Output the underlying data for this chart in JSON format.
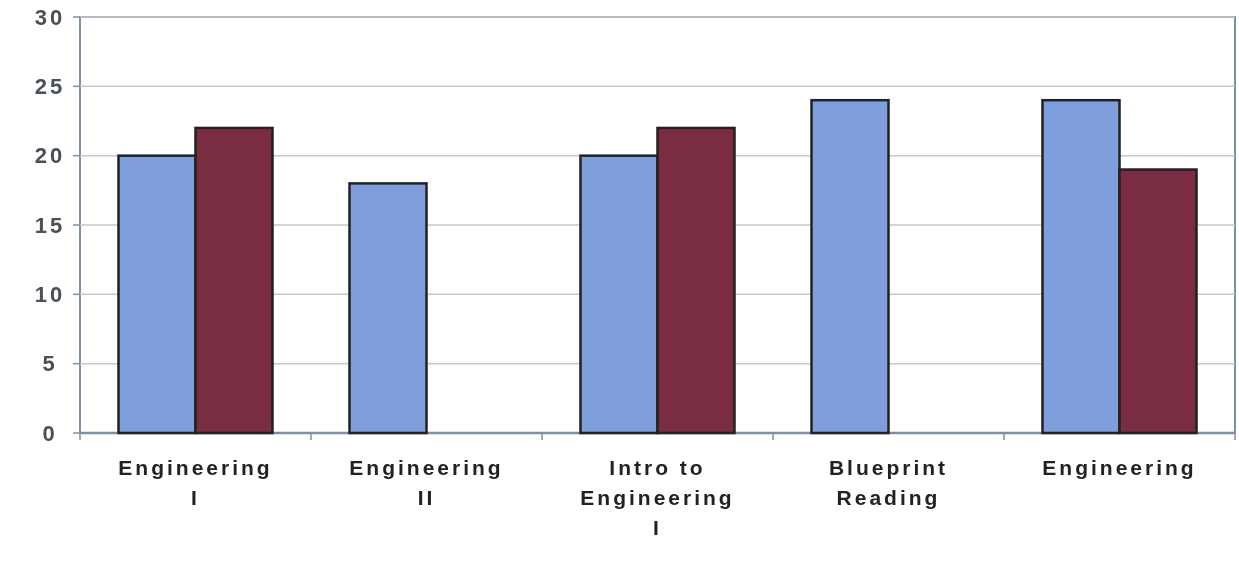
{
  "chart_data": {
    "type": "bar",
    "categories": [
      "Engineering\nI",
      "Engineering\nII",
      "Intro to\nEngineering\nI",
      "Blueprint\nReading",
      "Engineering"
    ],
    "series": [
      {
        "color": "#7f9fdc",
        "values": [
          20,
          18,
          20,
          24,
          24
        ]
      },
      {
        "color": "#7a2d40",
        "values": [
          22,
          null,
          22,
          null,
          19
        ]
      }
    ],
    "ylim": [
      0,
      30
    ],
    "yticks": [
      0,
      5,
      10,
      15,
      20,
      25,
      30
    ],
    "grid": "y"
  }
}
